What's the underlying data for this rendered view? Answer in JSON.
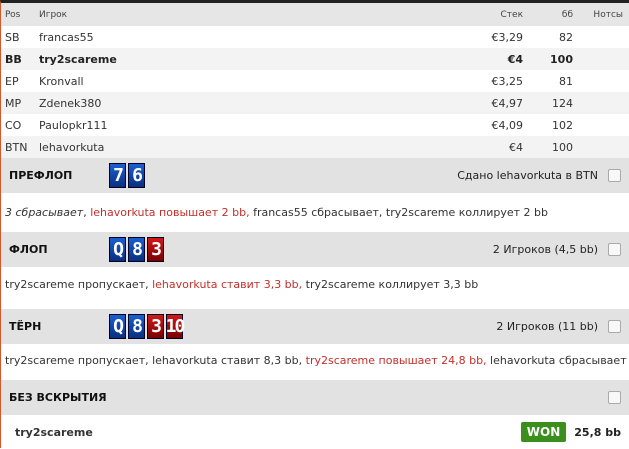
{
  "table": {
    "headers": {
      "pos": "Pos",
      "player": "Игрок",
      "stack": "Стек",
      "bb": "бб",
      "notes": "Нотсы"
    },
    "rows": [
      {
        "pos": "SB",
        "player": "francas55",
        "stack": "€3,29",
        "bb": "82"
      },
      {
        "pos": "BB",
        "player": "try2scareme",
        "stack": "€4",
        "bb": "100",
        "bold": true
      },
      {
        "pos": "EP",
        "player": "Kronvall",
        "stack": "€3,25",
        "bb": "81"
      },
      {
        "pos": "MP",
        "player": "Zdenek380",
        "stack": "€4,97",
        "bb": "124"
      },
      {
        "pos": "CO",
        "player": "Paulopkr111",
        "stack": "€4,09",
        "bb": "102"
      },
      {
        "pos": "BTN",
        "player": "lehavorkuta",
        "stack": "€4",
        "bb": "100"
      }
    ]
  },
  "streets": [
    {
      "name": "ПРЕФЛОП",
      "cards": [
        {
          "r": "7",
          "c": "blue"
        },
        {
          "r": "6",
          "c": "blue"
        }
      ],
      "info": "Сдано lehavorkuta в BTN",
      "actions": [
        {
          "t": "3 сбрасывает",
          "s": "it"
        },
        {
          "t": ", "
        },
        {
          "t": "lehavorkuta повышает 2 bb,",
          "s": "hl"
        },
        {
          "t": " francas55 сбрасывает, try2scareme коллирует 2 bb"
        }
      ]
    },
    {
      "name": "ФЛОП",
      "cards": [
        {
          "r": "Q",
          "c": "blue"
        },
        {
          "r": "8",
          "c": "blue"
        },
        {
          "r": "3",
          "c": "red"
        }
      ],
      "info": "2 Игроков (4,5 bb)",
      "actions": [
        {
          "t": "try2scareme пропускает, "
        },
        {
          "t": "lehavorkuta ставит 3,3 bb,",
          "s": "hl"
        },
        {
          "t": " try2scareme коллирует 3,3 bb"
        }
      ]
    },
    {
      "name": "ТЁРН",
      "cards": [
        {
          "r": "Q",
          "c": "blue"
        },
        {
          "r": "8",
          "c": "blue"
        },
        {
          "r": "3",
          "c": "red"
        },
        {
          "r": "10",
          "c": "red"
        }
      ],
      "info": "2 Игроков (11 bb)",
      "actions": [
        {
          "t": "try2scareme пропускает, lehavorkuta ставит 8,3 bb, "
        },
        {
          "t": "try2scareme повышает 24,8 bb,",
          "s": "hl"
        },
        {
          "t": " lehavorkuta сбрасывает"
        }
      ]
    }
  ],
  "showdown": {
    "name": "БЕЗ ВСКРЫТИЯ",
    "winner": "try2scareme",
    "badge": "WON",
    "amount": "25,8 bb"
  },
  "colors": {
    "accent": "#c0302a",
    "won": "#3a8f1d",
    "card_blue": "#1a5fd0",
    "card_red": "#d01a1a"
  }
}
